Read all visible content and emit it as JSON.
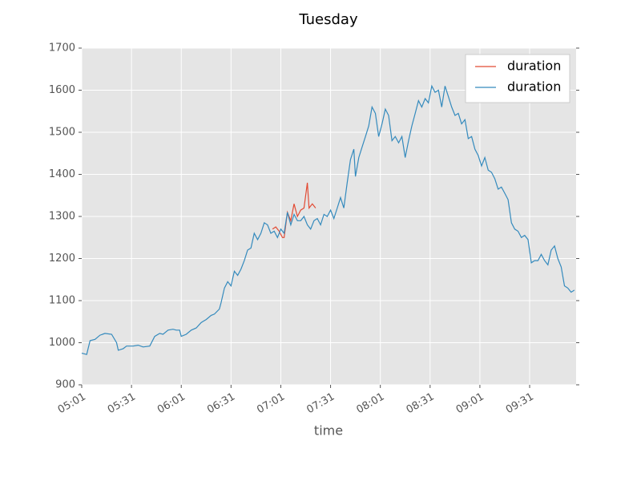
{
  "chart_data": {
    "type": "line",
    "title": "Tuesday",
    "xlabel": "time",
    "xlim": [
      "05:01",
      "09:59"
    ],
    "xticks": [
      "05:01",
      "05:31",
      "06:01",
      "06:31",
      "07:01",
      "07:31",
      "08:01",
      "08:31",
      "09:01",
      "09:31"
    ],
    "ylim": [
      900,
      1700
    ],
    "yticks": [
      900,
      1000,
      1100,
      1200,
      1300,
      1400,
      1500,
      1600,
      1700
    ],
    "grid": true,
    "legend": "upper right",
    "series": [
      {
        "name": "duration",
        "color": "#e24a33",
        "x": [
          "06:56",
          "06:58",
          "07:00",
          "07:02",
          "07:03",
          "07:05",
          "07:07",
          "07:09",
          "07:11",
          "07:13",
          "07:15",
          "07:17",
          "07:18",
          "07:20",
          "07:22"
        ],
        "values": [
          1270,
          1275,
          1265,
          1250,
          1250,
          1310,
          1290,
          1330,
          1300,
          1315,
          1320,
          1380,
          1320,
          1330,
          1320
        ]
      },
      {
        "name": "duration",
        "color": "#348abd",
        "x": [
          "05:01",
          "05:04",
          "05:06",
          "05:09",
          "05:12",
          "05:15",
          "05:19",
          "05:22",
          "05:23",
          "05:26",
          "05:28",
          "05:32",
          "05:35",
          "05:38",
          "05:42",
          "05:45",
          "05:48",
          "05:50",
          "05:53",
          "05:56",
          "05:58",
          "06:00",
          "06:01",
          "06:04",
          "06:07",
          "06:10",
          "06:13",
          "06:16",
          "06:19",
          "06:21",
          "06:24",
          "06:25",
          "06:27",
          "06:29",
          "06:31",
          "06:33",
          "06:35",
          "06:37",
          "06:39",
          "06:41",
          "06:43",
          "06:45",
          "06:47",
          "06:49",
          "06:51",
          "06:53",
          "06:55",
          "06:57",
          "06:59",
          "07:01",
          "07:03",
          "07:05",
          "07:07",
          "07:09",
          "07:11",
          "07:13",
          "07:15",
          "07:17",
          "07:19",
          "07:21",
          "07:23",
          "07:25",
          "07:27",
          "07:29",
          "07:31",
          "07:33",
          "07:35",
          "07:37",
          "07:39",
          "07:41",
          "07:43",
          "07:45",
          "07:46",
          "07:48",
          "07:50",
          "07:52",
          "07:54",
          "07:56",
          "07:58",
          "08:00",
          "08:02",
          "08:04",
          "08:06",
          "08:08",
          "08:10",
          "08:12",
          "08:14",
          "08:16",
          "08:18",
          "08:20",
          "08:22",
          "08:24",
          "08:26",
          "08:28",
          "08:30",
          "08:32",
          "08:34",
          "08:36",
          "08:38",
          "08:40",
          "08:42",
          "08:44",
          "08:46",
          "08:48",
          "08:50",
          "08:52",
          "08:54",
          "08:56",
          "08:58",
          "09:00",
          "09:02",
          "09:04",
          "09:06",
          "09:08",
          "09:10",
          "09:12",
          "09:14",
          "09:16",
          "09:18",
          "09:20",
          "09:22",
          "09:24",
          "09:26",
          "09:28",
          "09:30",
          "09:32",
          "09:34",
          "09:36",
          "09:38",
          "09:40",
          "09:42",
          "09:44",
          "09:46",
          "09:48",
          "09:50",
          "09:52",
          "09:54",
          "09:56",
          "09:58"
        ],
        "values": [
          975,
          972,
          1005,
          1008,
          1018,
          1022,
          1020,
          1000,
          982,
          986,
          992,
          992,
          994,
          990,
          992,
          1015,
          1022,
          1020,
          1030,
          1032,
          1030,
          1030,
          1015,
          1020,
          1030,
          1035,
          1048,
          1055,
          1065,
          1068,
          1080,
          1095,
          1130,
          1145,
          1135,
          1170,
          1160,
          1175,
          1195,
          1220,
          1225,
          1260,
          1245,
          1260,
          1285,
          1280,
          1260,
          1265,
          1250,
          1270,
          1260,
          1310,
          1280,
          1305,
          1290,
          1290,
          1300,
          1280,
          1270,
          1290,
          1295,
          1280,
          1305,
          1300,
          1315,
          1295,
          1320,
          1345,
          1320,
          1380,
          1435,
          1460,
          1395,
          1440,
          1465,
          1490,
          1515,
          1560,
          1545,
          1490,
          1520,
          1555,
          1540,
          1480,
          1490,
          1475,
          1490,
          1440,
          1480,
          1515,
          1545,
          1575,
          1560,
          1580,
          1570,
          1610,
          1595,
          1600,
          1560,
          1610,
          1585,
          1560,
          1540,
          1545,
          1520,
          1530,
          1485,
          1490,
          1460,
          1445,
          1420,
          1440,
          1410,
          1405,
          1390,
          1365,
          1370,
          1355,
          1340,
          1285,
          1270,
          1265,
          1250,
          1255,
          1245,
          1190,
          1195,
          1195,
          1210,
          1195,
          1185,
          1220,
          1230,
          1200,
          1180,
          1135,
          1130,
          1120,
          1125
        ]
      }
    ]
  }
}
